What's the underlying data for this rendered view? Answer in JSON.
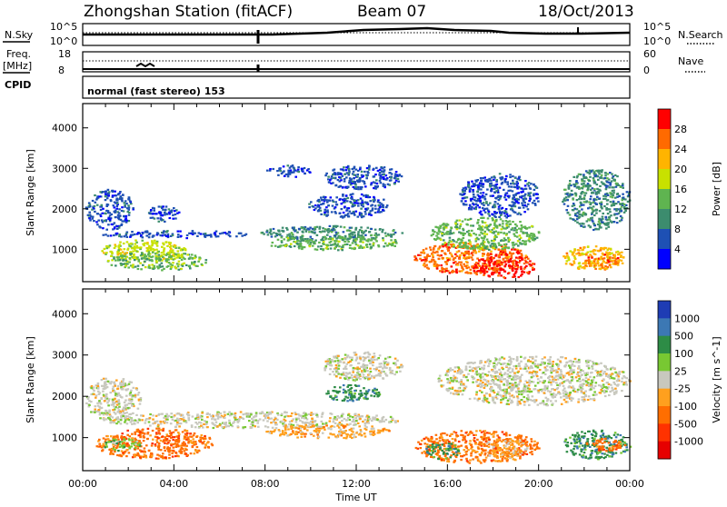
{
  "header": {
    "title": "Zhongshan Station (fitACF)",
    "beam": "Beam 07",
    "date": "18/Oct/2013"
  },
  "top_panels": {
    "nsky_label": "N.Sky",
    "nsky_ticks": [
      "10^5",
      "10^0"
    ],
    "nsearch_label": "N.Search",
    "nsearch_ticks": [
      "10^5",
      "10^0"
    ],
    "freq_label": "Freq.",
    "freq_unit": "[MHz]",
    "freq_ticks": [
      "18",
      "8"
    ],
    "nave_label": "Nave",
    "nave_ticks": [
      "60",
      "0"
    ],
    "cpid_label": "CPID",
    "cpid_value": "normal (fast stereo) 153"
  },
  "chart_data": [
    {
      "type": "heatmap",
      "name": "power-panel",
      "ylabel": "Slant Range [km]",
      "yticks": [
        "1000",
        "2000",
        "3000",
        "4000"
      ],
      "ylim": [
        200,
        4600
      ],
      "xlim": [
        0,
        24
      ],
      "colorbar_label": "Power [dB]",
      "colorbar_ticks": [
        "28",
        "24",
        "20",
        "16",
        "12",
        "8",
        "4"
      ],
      "colorbar_colors": [
        "#ff0000",
        "#ff6a00",
        "#ffb400",
        "#c8e100",
        "#5fb450",
        "#3c8c6e",
        "#1e50b4",
        "#0000ff"
      ],
      "blobs": [
        {
          "t": [
            0.1,
            2.2
          ],
          "r": [
            1500,
            2500
          ],
          "level": 1
        },
        {
          "t": [
            2.8,
            4.2
          ],
          "r": [
            1700,
            2100
          ],
          "level": 1
        },
        {
          "t": [
            0.8,
            7.5
          ],
          "r": [
            1300,
            1480
          ],
          "level": 1
        },
        {
          "t": [
            7.5,
            14.0
          ],
          "r": [
            1250,
            1600
          ],
          "level": 2
        },
        {
          "t": [
            0.8,
            4.5
          ],
          "r": [
            700,
            1250
          ],
          "level": 4
        },
        {
          "t": [
            1.0,
            5.5
          ],
          "r": [
            500,
            950
          ],
          "level": 3
        },
        {
          "t": [
            8.0,
            14.0
          ],
          "r": [
            1000,
            1350
          ],
          "level": 3
        },
        {
          "t": [
            10.5,
            14.0
          ],
          "r": [
            2500,
            3100
          ],
          "level": 1
        },
        {
          "t": [
            8.0,
            10.0
          ],
          "r": [
            2800,
            3100
          ],
          "level": 1
        },
        {
          "t": [
            9.8,
            13.5
          ],
          "r": [
            1800,
            2400
          ],
          "level": 1
        },
        {
          "t": [
            14.5,
            19.5
          ],
          "r": [
            400,
            1200
          ],
          "level": 6
        },
        {
          "t": [
            17.0,
            19.8
          ],
          "r": [
            300,
            900
          ],
          "level": 7
        },
        {
          "t": [
            15.2,
            20.0
          ],
          "r": [
            1000,
            1800
          ],
          "level": 3
        },
        {
          "t": [
            16.5,
            20.0
          ],
          "r": [
            1800,
            2900
          ],
          "level": 1
        },
        {
          "t": [
            21.0,
            24.0
          ],
          "r": [
            1500,
            3000
          ],
          "level": 2
        },
        {
          "t": [
            21.0,
            23.8
          ],
          "r": [
            500,
            1100
          ],
          "level": 5
        },
        {
          "t": [
            22.0,
            23.5
          ],
          "r": [
            600,
            900
          ],
          "level": 6
        }
      ]
    },
    {
      "type": "heatmap",
      "name": "velocity-panel",
      "ylabel": "Slant Range [km]",
      "yticks": [
        "1000",
        "2000",
        "3000",
        "4000"
      ],
      "ylim": [
        200,
        4600
      ],
      "xlim": [
        0,
        24
      ],
      "xticks": [
        "00:00",
        "04:00",
        "08:00",
        "12:00",
        "16:00",
        "20:00",
        "00:00"
      ],
      "xlabel": "Time UT",
      "colorbar_label": "Velocity [m s^-1]",
      "colorbar_ticks": [
        "1000",
        "500",
        "100",
        "25",
        "-25",
        "-100",
        "-500",
        "-1000"
      ],
      "colorbar_colors": [
        "#1e3cb4",
        "#3c78b4",
        "#2d8c46",
        "#78c832",
        "#c8c8be",
        "#ffa01e",
        "#ff6e00",
        "#ff3200",
        "#e60000"
      ],
      "blobs": [
        {
          "t": [
            0.1,
            2.5
          ],
          "r": [
            1400,
            2500
          ],
          "level": 4
        },
        {
          "t": [
            0.8,
            14.0
          ],
          "r": [
            1250,
            1650
          ],
          "level": 4
        },
        {
          "t": [
            0.5,
            5.8
          ],
          "r": [
            500,
            1250
          ],
          "level": 6
        },
        {
          "t": [
            0.8,
            2.5
          ],
          "r": [
            700,
            1000
          ],
          "level": 3
        },
        {
          "t": [
            8.0,
            13.5
          ],
          "r": [
            1000,
            1350
          ],
          "level": 5
        },
        {
          "t": [
            10.5,
            14.0
          ],
          "r": [
            2400,
            3100
          ],
          "level": 4
        },
        {
          "t": [
            10.5,
            13.0
          ],
          "r": [
            1900,
            2300
          ],
          "level": 2
        },
        {
          "t": [
            14.5,
            20.0
          ],
          "r": [
            400,
            1200
          ],
          "level": 6
        },
        {
          "t": [
            15.0,
            16.5
          ],
          "r": [
            500,
            900
          ],
          "level": 2
        },
        {
          "t": [
            17.5,
            19.5
          ],
          "r": [
            500,
            1000
          ],
          "level": 5
        },
        {
          "t": [
            15.5,
            24.0
          ],
          "r": [
            1800,
            3000
          ],
          "level": 4
        },
        {
          "t": [
            21.0,
            24.0
          ],
          "r": [
            500,
            1200
          ],
          "level": 2
        },
        {
          "t": [
            22.0,
            23.8
          ],
          "r": [
            700,
            1000
          ],
          "level": 6
        }
      ]
    }
  ]
}
